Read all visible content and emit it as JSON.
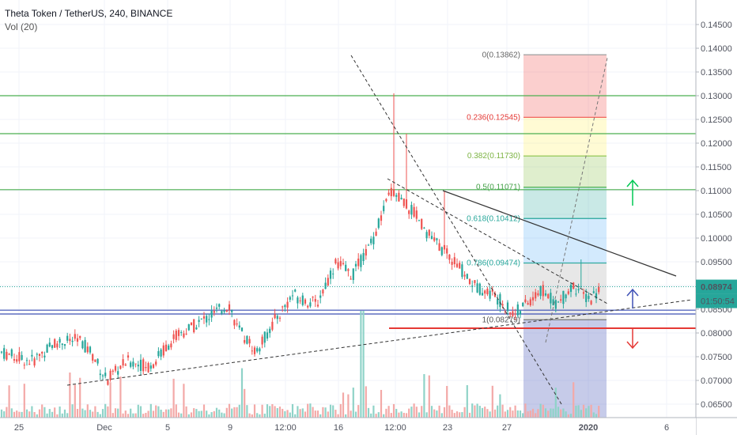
{
  "header": {
    "title": "Theta Token / TetherUS, 240, BINANCE",
    "indicator": "Vol (20)"
  },
  "price_tag": {
    "value": "0.08974",
    "color": "#26a69a"
  },
  "countdown_tag": {
    "value": "01:50:54"
  },
  "colors": {
    "up": "#26a69a",
    "down": "#ef5350",
    "up_vol": "#8fd3c8",
    "down_vol": "#f3a9a7",
    "support_green": "#4caf50",
    "blue_line": "#3f51b5",
    "red_line": "#e53935"
  },
  "chart_data": {
    "type": "candlestick",
    "title": "Theta Token / TetherUS, 240, BINANCE",
    "ylim": [
      0.0635,
      0.1475
    ],
    "y_ticks": [
      "0.14500",
      "0.14000",
      "0.13500",
      "0.13000",
      "0.12500",
      "0.12000",
      "0.11500",
      "0.11000",
      "0.10500",
      "0.10000",
      "0.09500",
      "0.09000",
      "0.08500",
      "0.08000",
      "0.07500",
      "0.07000",
      "0.06500"
    ],
    "x_ticks": [
      "25",
      "Dec",
      "5",
      "9",
      "12:00",
      "16",
      "12:00",
      "23",
      "27",
      "2020",
      "6"
    ],
    "horizontal_levels": [
      {
        "price": 0.13,
        "color": "green"
      },
      {
        "price": 0.122,
        "color": "green"
      },
      {
        "price": 0.1102,
        "color": "green"
      },
      {
        "price": 0.0848,
        "color": "blue"
      },
      {
        "price": 0.084,
        "color": "blue"
      },
      {
        "price": 0.081,
        "color": "red"
      }
    ],
    "fibonacci": [
      {
        "label": "0(0.13862)",
        "price": 0.13862
      },
      {
        "label": "0.236(0.12545)",
        "price": 0.12545
      },
      {
        "label": "0.382(0.11730)",
        "price": 0.1173
      },
      {
        "label": "0.5(0.11071)",
        "price": 0.11071
      },
      {
        "label": "0.618(0.10412)",
        "price": 0.10412
      },
      {
        "label": "0.786(0.09474)",
        "price": 0.09474
      },
      {
        "label": "1(0.08279)",
        "price": 0.08279
      }
    ],
    "current_price": 0.08974,
    "approx_path": [
      [
        0,
        0.076
      ],
      [
        40,
        0.074
      ],
      [
        70,
        0.078
      ],
      [
        100,
        0.0785
      ],
      [
        115,
        0.076
      ],
      [
        135,
        0.07
      ],
      [
        160,
        0.074
      ],
      [
        190,
        0.073
      ],
      [
        220,
        0.079
      ],
      [
        260,
        0.083
      ],
      [
        290,
        0.086
      ],
      [
        300,
        0.081
      ],
      [
        325,
        0.076
      ],
      [
        345,
        0.082
      ],
      [
        370,
        0.088
      ],
      [
        400,
        0.086
      ],
      [
        425,
        0.095
      ],
      [
        445,
        0.092
      ],
      [
        470,
        0.099
      ],
      [
        495,
        0.11
      ],
      [
        525,
        0.105
      ],
      [
        545,
        0.1
      ],
      [
        575,
        0.095
      ],
      [
        600,
        0.09
      ],
      [
        625,
        0.088
      ],
      [
        650,
        0.084
      ],
      [
        665,
        0.086
      ],
      [
        685,
        0.089
      ],
      [
        705,
        0.086
      ],
      [
        725,
        0.09
      ],
      [
        745,
        0.087
      ],
      [
        760,
        0.0895
      ]
    ]
  }
}
